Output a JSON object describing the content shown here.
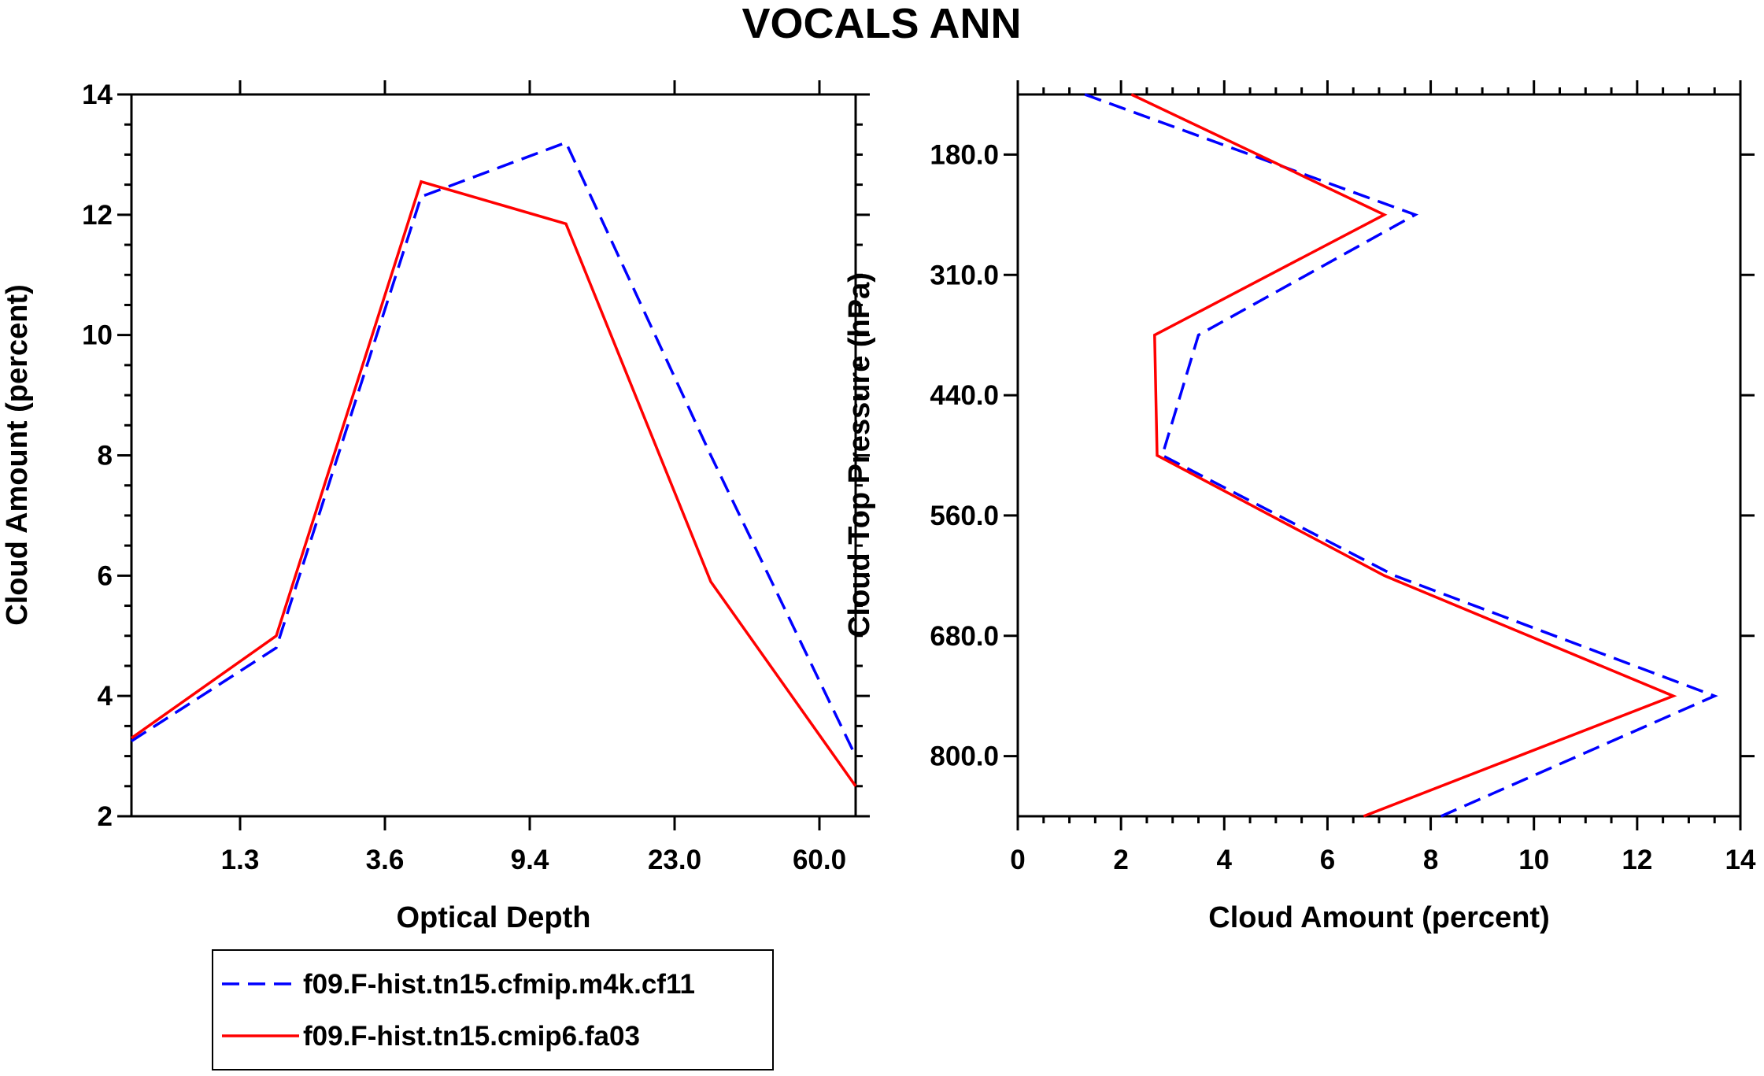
{
  "title": "VOCALS ANN",
  "colors": {
    "series_a": "#0000ff",
    "series_b": "#ff0000",
    "axis": "#000000"
  },
  "chart_data": [
    {
      "type": "line",
      "panel": "left",
      "xlabel": "Optical Depth",
      "ylabel": "Cloud Amount (percent)",
      "x_positions": [
        0.1,
        0.3,
        0.5,
        0.7,
        0.9,
        1.1,
        1.3,
        1.5,
        1.7,
        1.9
      ],
      "x_ticklabels": [
        "1.3",
        "3.6",
        "9.4",
        "23.0",
        "60.0"
      ],
      "x_tick_positions": [
        0.3,
        0.7,
        1.1,
        1.5,
        1.9
      ],
      "ylim": [
        2,
        14
      ],
      "yticks": [
        "2",
        "4",
        "6",
        "8",
        "10",
        "12",
        "14"
      ],
      "series": [
        {
          "name": "f09.F-hist.tn15.cfmip.m4k.cf11",
          "style": "dashed",
          "color": "#0000ff",
          "x": [
            0.0,
            0.4,
            0.8,
            1.2,
            1.6,
            2.0
          ],
          "values": [
            3.25,
            4.8,
            12.3,
            13.2,
            8.0,
            3.0
          ]
        },
        {
          "name": "f09.F-hist.tn15.cmip6.fa03",
          "style": "solid",
          "color": "#ff0000",
          "x": [
            0.0,
            0.4,
            0.8,
            1.2,
            1.6,
            2.0
          ],
          "values": [
            3.3,
            5.0,
            12.55,
            11.85,
            5.9,
            2.5
          ]
        }
      ]
    },
    {
      "type": "line",
      "panel": "right",
      "xlabel": "Cloud Amount (percent)",
      "ylabel": "Cloud Top Pressure (hPa)",
      "xlim": [
        0,
        14
      ],
      "xticks": [
        "0",
        "2",
        "4",
        "6",
        "8",
        "10",
        "12",
        "14"
      ],
      "y_range": [
        50,
        950
      ],
      "y_ticklabels": [
        "180.0",
        "310.0",
        "440.0",
        "560.0",
        "680.0",
        "800.0"
      ],
      "y_tick_values": [
        125,
        275,
        425,
        575,
        725,
        875
      ],
      "series": [
        {
          "name": "f09.F-hist.tn15.cfmip.m4k.cf11",
          "style": "dashed",
          "color": "#0000ff",
          "values": [
            1.3,
            7.7,
            3.5,
            2.8,
            7.3,
            13.5,
            8.2
          ],
          "y": [
            50,
            200,
            350,
            500,
            650,
            800,
            950
          ]
        },
        {
          "name": "f09.F-hist.tn15.cmip6.fa03",
          "style": "solid",
          "color": "#ff0000",
          "values": [
            2.2,
            7.1,
            2.65,
            2.7,
            7.1,
            12.7,
            6.7
          ],
          "y": [
            50,
            200,
            350,
            500,
            650,
            800,
            950
          ]
        }
      ]
    }
  ],
  "legend": {
    "items": [
      {
        "label": "f09.F-hist.tn15.cfmip.m4k.cf11",
        "style": "dashed",
        "color": "#0000ff"
      },
      {
        "label": "f09.F-hist.tn15.cmip6.fa03",
        "style": "solid",
        "color": "#ff0000"
      }
    ]
  }
}
